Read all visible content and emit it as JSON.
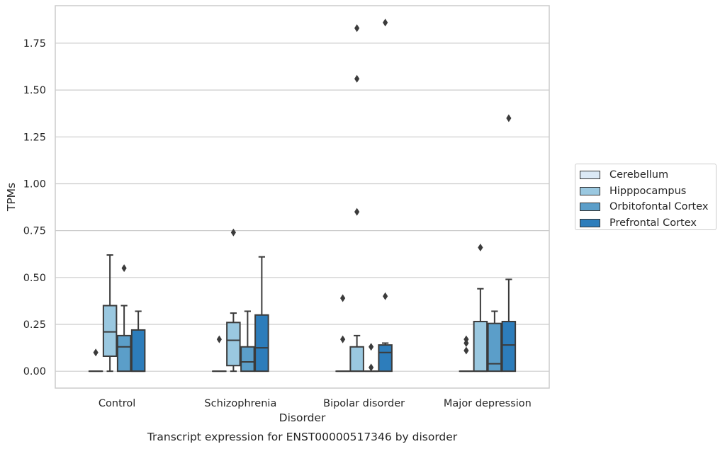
{
  "chart_data": {
    "type": "box",
    "title": "Transcript expression for ENST00000517346 by disorder",
    "xlabel": "Disorder",
    "ylabel": "TPMs",
    "ylim": [
      -0.09,
      1.95
    ],
    "yticks": [
      "0.00",
      "0.25",
      "0.50",
      "0.75",
      "1.00",
      "1.25",
      "1.50",
      "1.75"
    ],
    "grid": true,
    "legend_position": "right",
    "categories": [
      "Control",
      "Schizophrenia",
      "Bipolar disorder",
      "Major depression"
    ],
    "series": [
      {
        "name": "Cerebellum",
        "color": "#dbe9f6",
        "boxes": [
          {
            "q1": 0,
            "median": 0,
            "q3": 0,
            "whisker_low": 0,
            "whisker_high": 0,
            "outliers": [
              0.1
            ]
          },
          {
            "q1": 0,
            "median": 0,
            "q3": 0,
            "whisker_low": 0,
            "whisker_high": 0,
            "outliers": [
              0.17
            ]
          },
          {
            "q1": 0,
            "median": 0,
            "q3": 0,
            "whisker_low": 0,
            "whisker_high": 0,
            "outliers": [
              0.17,
              0.39
            ]
          },
          {
            "q1": 0,
            "median": 0,
            "q3": 0,
            "whisker_low": 0,
            "whisker_high": 0,
            "outliers": [
              0.11,
              0.15,
              0.17
            ]
          }
        ]
      },
      {
        "name": "Hipppocampus",
        "color": "#9ac8e0",
        "boxes": [
          {
            "q1": 0.08,
            "median": 0.21,
            "q3": 0.35,
            "whisker_low": 0,
            "whisker_high": 0.62,
            "outliers": []
          },
          {
            "q1": 0.03,
            "median": 0.165,
            "q3": 0.26,
            "whisker_low": 0,
            "whisker_high": 0.31,
            "outliers": [
              0.74
            ]
          },
          {
            "q1": 0,
            "median": 0,
            "q3": 0.13,
            "whisker_low": 0,
            "whisker_high": 0.19,
            "outliers": [
              0.85,
              1.56,
              1.83
            ]
          },
          {
            "q1": 0,
            "median": 0,
            "q3": 0.265,
            "whisker_low": 0,
            "whisker_high": 0.44,
            "outliers": [
              0.66
            ]
          }
        ]
      },
      {
        "name": "Orbitofontal Cortex",
        "color": "#5b9ec9",
        "boxes": [
          {
            "q1": 0,
            "median": 0.13,
            "q3": 0.19,
            "whisker_low": 0,
            "whisker_high": 0.35,
            "outliers": [
              0.55
            ]
          },
          {
            "q1": 0,
            "median": 0.05,
            "q3": 0.13,
            "whisker_low": 0,
            "whisker_high": 0.32,
            "outliers": []
          },
          {
            "q1": 0,
            "median": 0,
            "q3": 0,
            "whisker_low": 0,
            "whisker_high": 0,
            "outliers": [
              0.02,
              0.13
            ]
          },
          {
            "q1": 0,
            "median": 0.04,
            "q3": 0.255,
            "whisker_low": 0,
            "whisker_high": 0.32,
            "outliers": []
          }
        ]
      },
      {
        "name": "Prefrontal Cortex",
        "color": "#2d7dbb",
        "boxes": [
          {
            "q1": 0,
            "median": 0,
            "q3": 0.22,
            "whisker_low": 0,
            "whisker_high": 0.32,
            "outliers": []
          },
          {
            "q1": 0,
            "median": 0.125,
            "q3": 0.3,
            "whisker_low": 0,
            "whisker_high": 0.61,
            "outliers": []
          },
          {
            "q1": 0,
            "median": 0.1,
            "q3": 0.14,
            "whisker_low": 0,
            "whisker_high": 0.15,
            "outliers": [
              0.4,
              1.86
            ]
          },
          {
            "q1": 0,
            "median": 0.14,
            "q3": 0.265,
            "whisker_low": 0,
            "whisker_high": 0.49,
            "outliers": [
              1.35
            ]
          }
        ]
      }
    ]
  }
}
